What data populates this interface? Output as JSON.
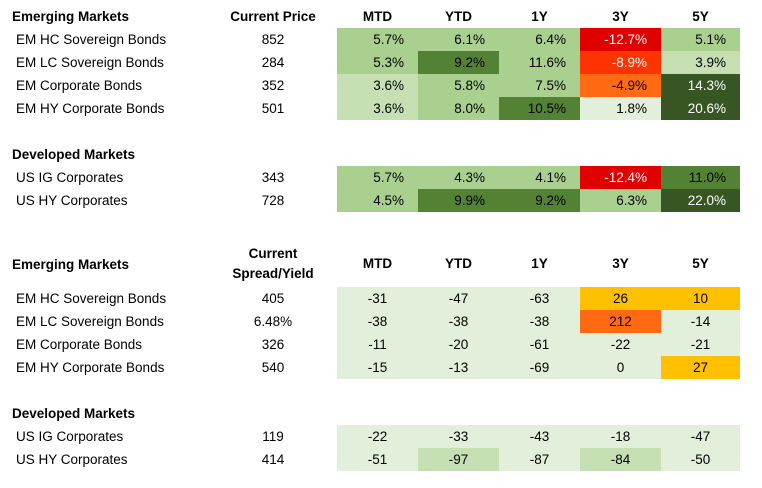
{
  "colors": {
    "green_light": "#e2efda",
    "green_mid": "#c6e0b4",
    "green": "#a9d08e",
    "green_dark": "#548235",
    "green_darkest": "#375623",
    "red": "#e00000",
    "orange_red": "#ff3300",
    "orange": "#ff6a13",
    "amber": "#ffc000"
  },
  "returns": {
    "headers": {
      "group": "Emerging Markets",
      "metric": "Current Price",
      "mtd": "MTD",
      "ytd": "YTD",
      "y1": "1Y",
      "y3": "3Y",
      "y5": "5Y"
    },
    "em_rows": [
      {
        "name": "EM HC Sovereign Bonds",
        "metric": "852",
        "mtd": "5.7%",
        "ytd": "6.1%",
        "y1": "6.4%",
        "y3": "-12.7%",
        "y5": "5.1%"
      },
      {
        "name": "EM LC Sovereign Bonds",
        "metric": "284",
        "mtd": "5.3%",
        "ytd": "9.2%",
        "y1": "11.6%",
        "y3": "-8.9%",
        "y5": "3.9%"
      },
      {
        "name": "EM Corporate Bonds",
        "metric": "352",
        "mtd": "3.6%",
        "ytd": "5.8%",
        "y1": "7.5%",
        "y3": "-4.9%",
        "y5": "14.3%"
      },
      {
        "name": "EM HY Corporate Bonds",
        "metric": "501",
        "mtd": "3.6%",
        "ytd": "8.0%",
        "y1": "10.5%",
        "y3": "1.8%",
        "y5": "20.6%"
      }
    ],
    "dm_header": "Developed Markets",
    "dm_rows": [
      {
        "name": "US IG Corporates",
        "metric": "343",
        "mtd": "5.7%",
        "ytd": "4.3%",
        "y1": "4.1%",
        "y3": "-12.4%",
        "y5": "11.0%"
      },
      {
        "name": "US HY Corporates",
        "metric": "728",
        "mtd": "4.5%",
        "ytd": "9.9%",
        "y1": "9.2%",
        "y3": "6.3%",
        "y5": "22.0%"
      }
    ]
  },
  "spreads": {
    "headers": {
      "group": "Emerging Markets",
      "metric_line1": "Current",
      "metric_line2": "Spread/Yield",
      "mtd": "MTD",
      "ytd": "YTD",
      "y1": "1Y",
      "y3": "3Y",
      "y5": "5Y"
    },
    "em_rows": [
      {
        "name": "EM HC Sovereign Bonds",
        "metric": "405",
        "mtd": "-31",
        "ytd": "-47",
        "y1": "-63",
        "y3": "26",
        "y5": "10"
      },
      {
        "name": "EM LC Sovereign Bonds",
        "metric": "6.48%",
        "mtd": "-38",
        "ytd": "-38",
        "y1": "-38",
        "y3": "212",
        "y5": "-14"
      },
      {
        "name": "EM Corporate Bonds",
        "metric": "326",
        "mtd": "-11",
        "ytd": "-20",
        "y1": "-61",
        "y3": "-22",
        "y5": "-21"
      },
      {
        "name": "EM HY Corporate Bonds",
        "metric": "540",
        "mtd": "-15",
        "ytd": "-13",
        "y1": "-69",
        "y3": "0",
        "y5": "27"
      }
    ],
    "dm_header": "Developed Markets",
    "dm_rows": [
      {
        "name": "US IG Corporates",
        "metric": "119",
        "mtd": "-22",
        "ytd": "-33",
        "y1": "-43",
        "y3": "-18",
        "y5": "-47"
      },
      {
        "name": "US HY Corporates",
        "metric": "414",
        "mtd": "-51",
        "ytd": "-97",
        "y1": "-87",
        "y3": "-84",
        "y5": "-50"
      }
    ]
  }
}
